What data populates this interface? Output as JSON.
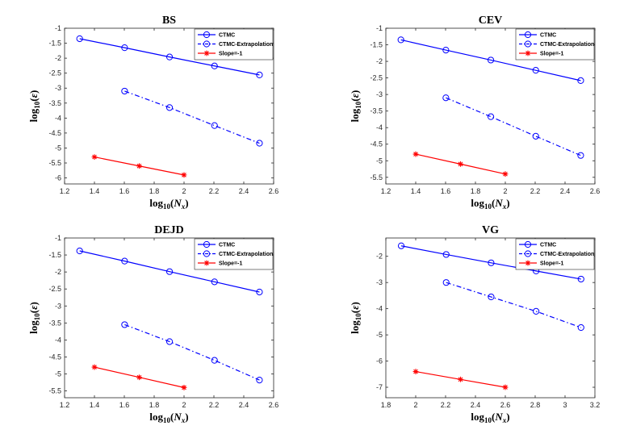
{
  "chart_data": [
    {
      "type": "line",
      "title": "BS",
      "xlabel": "log10(Nx)",
      "ylabel": "log10(ε)",
      "xlim": [
        1.2,
        2.6
      ],
      "ylim": [
        -6.2,
        -1
      ],
      "x_ticks": [
        "1.2",
        "1.4",
        "1.6",
        "1.8",
        "2",
        "2.2",
        "2.4",
        "2.6"
      ],
      "y_ticks": [
        "-1",
        "-1.5",
        "-2",
        "-2.5",
        "-3",
        "-3.5",
        "-4",
        "-4.5",
        "-5",
        "-5.5",
        "-6"
      ],
      "legend_position": "top-right",
      "series": [
        {
          "name": "CTMC",
          "color": "#0000ff",
          "style": "solid",
          "marker": "circle",
          "x": [
            1.301,
            1.602,
            1.903,
            2.204,
            2.505
          ],
          "y": [
            -1.35,
            -1.65,
            -1.96,
            -2.26,
            -2.56
          ]
        },
        {
          "name": "CTMC-Extrapolation",
          "color": "#0000ff",
          "style": "dashdot",
          "marker": "circle",
          "x": [
            1.602,
            1.903,
            2.204,
            2.505
          ],
          "y": [
            -3.1,
            -3.65,
            -4.25,
            -4.84
          ]
        },
        {
          "name": "Slope=-1",
          "color": "#ff0000",
          "style": "solid",
          "marker": "star",
          "x": [
            1.4,
            1.7,
            2.0
          ],
          "y": [
            -5.3,
            -5.6,
            -5.9
          ]
        }
      ]
    },
    {
      "type": "line",
      "title": "CEV",
      "xlabel": "log10(Nx)",
      "ylabel": "log10(ε)",
      "xlim": [
        1.2,
        2.6
      ],
      "ylim": [
        -5.7,
        -1
      ],
      "x_ticks": [
        "1.2",
        "1.4",
        "1.6",
        "1.8",
        "2",
        "2.2",
        "2.4",
        "2.6"
      ],
      "y_ticks": [
        "-1",
        "-1.5",
        "-2",
        "-2.5",
        "-3",
        "-3.5",
        "-4",
        "-4.5",
        "-5",
        "-5.5"
      ],
      "legend_position": "top-right",
      "series": [
        {
          "name": "CTMC",
          "color": "#0000ff",
          "style": "solid",
          "marker": "circle",
          "x": [
            1.301,
            1.602,
            1.903,
            2.204,
            2.505
          ],
          "y": [
            -1.35,
            -1.66,
            -1.96,
            -2.27,
            -2.58
          ]
        },
        {
          "name": "CTMC-Extrapolation",
          "color": "#0000ff",
          "style": "dashdot",
          "marker": "circle",
          "x": [
            1.602,
            1.903,
            2.204,
            2.505
          ],
          "y": [
            -3.1,
            -3.67,
            -4.26,
            -4.84
          ]
        },
        {
          "name": "Slope=-1",
          "color": "#ff0000",
          "style": "solid",
          "marker": "star",
          "x": [
            1.4,
            1.7,
            2.0
          ],
          "y": [
            -4.8,
            -5.1,
            -5.4
          ]
        }
      ]
    },
    {
      "type": "line",
      "title": "DEJD",
      "xlabel": "log10(Nx)",
      "ylabel": "log10(ε)",
      "xlim": [
        1.2,
        2.6
      ],
      "ylim": [
        -5.7,
        -1
      ],
      "x_ticks": [
        "1.2",
        "1.4",
        "1.6",
        "1.8",
        "2",
        "2.2",
        "2.4",
        "2.6"
      ],
      "y_ticks": [
        "-1",
        "-1.5",
        "-2",
        "-2.5",
        "-3",
        "-3.5",
        "-4",
        "-4.5",
        "-5",
        "-5.5"
      ],
      "legend_position": "top-right",
      "series": [
        {
          "name": "CTMC",
          "color": "#0000ff",
          "style": "solid",
          "marker": "circle",
          "x": [
            1.301,
            1.602,
            1.903,
            2.204,
            2.505
          ],
          "y": [
            -1.38,
            -1.68,
            -1.99,
            -2.29,
            -2.59
          ]
        },
        {
          "name": "CTMC-Extrapolation",
          "color": "#0000ff",
          "style": "dashdot",
          "marker": "circle",
          "x": [
            1.602,
            1.903,
            2.204,
            2.505
          ],
          "y": [
            -3.55,
            -4.05,
            -4.6,
            -5.18
          ]
        },
        {
          "name": "Slope=-1",
          "color": "#ff0000",
          "style": "solid",
          "marker": "star",
          "x": [
            1.4,
            1.7,
            2.0
          ],
          "y": [
            -4.8,
            -5.1,
            -5.4
          ]
        }
      ]
    },
    {
      "type": "line",
      "title": "VG",
      "xlabel": "log10(Nx)",
      "ylabel": "log10(ε)",
      "xlim": [
        1.8,
        3.2
      ],
      "ylim": [
        -7.4,
        -1.3
      ],
      "x_ticks": [
        "1.8",
        "2",
        "2.2",
        "2.4",
        "2.6",
        "2.8",
        "3",
        "3.2"
      ],
      "y_ticks": [
        "-2",
        "-3",
        "-4",
        "-5",
        "-6",
        "-7"
      ],
      "legend_position": "top-right",
      "series": [
        {
          "name": "CTMC",
          "color": "#0000ff",
          "style": "solid",
          "marker": "circle",
          "x": [
            1.903,
            2.204,
            2.505,
            2.806,
            3.107
          ],
          "y": [
            -1.6,
            -1.93,
            -2.25,
            -2.56,
            -2.87
          ]
        },
        {
          "name": "CTMC-Extrapolation",
          "color": "#0000ff",
          "style": "dashdot",
          "marker": "circle",
          "x": [
            2.204,
            2.505,
            2.806,
            3.107
          ],
          "y": [
            -3.0,
            -3.55,
            -4.1,
            -4.72
          ]
        },
        {
          "name": "Slope=-1",
          "color": "#ff0000",
          "style": "solid",
          "marker": "star",
          "x": [
            2.0,
            2.3,
            2.6
          ],
          "y": [
            -6.4,
            -6.7,
            -7.0
          ]
        }
      ]
    }
  ]
}
